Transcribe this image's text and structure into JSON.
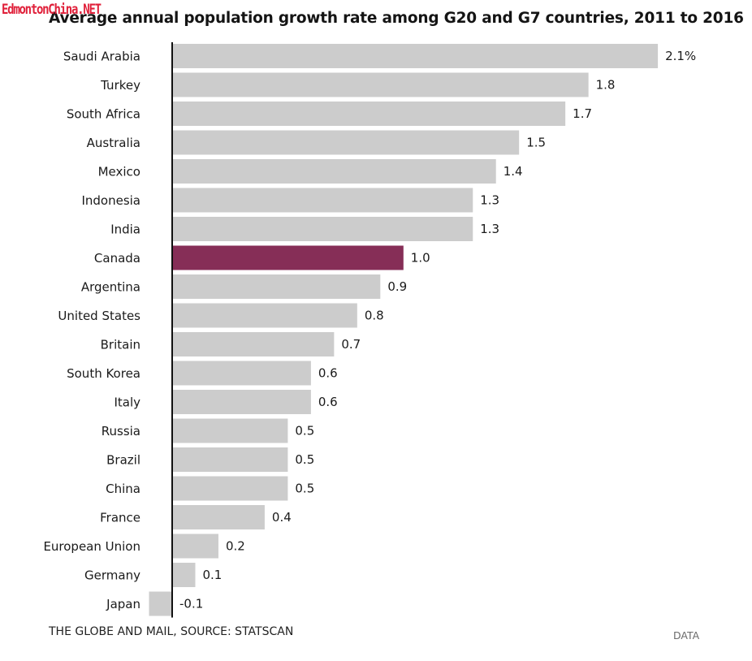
{
  "watermark": "EdmontonChina.NET",
  "chart_data": {
    "type": "bar",
    "orientation": "horizontal",
    "title": "Average annual population growth rate among G20 and G7 countries, 2011 to 2016",
    "xlabel": "",
    "ylabel": "",
    "unit": "%",
    "xlim": [
      -0.1,
      2.1
    ],
    "grid": false,
    "categories": [
      "Saudi Arabia",
      "Turkey",
      "South Africa",
      "Australia",
      "Mexico",
      "Indonesia",
      "India",
      "Canada",
      "Argentina",
      "United States",
      "Britain",
      "South Korea",
      "Italy",
      "Russia",
      "Brazil",
      "China",
      "France",
      "European Union",
      "Germany",
      "Japan"
    ],
    "values": [
      2.1,
      1.8,
      1.7,
      1.5,
      1.4,
      1.3,
      1.3,
      1.0,
      0.9,
      0.8,
      0.7,
      0.6,
      0.6,
      0.5,
      0.5,
      0.5,
      0.4,
      0.2,
      0.1,
      -0.1
    ],
    "value_labels": [
      "2.1%",
      "1.8",
      "1.7",
      "1.5",
      "1.4",
      "1.3",
      "1.3",
      "1.0",
      "0.9",
      "0.8",
      "0.7",
      "0.6",
      "0.6",
      "0.5",
      "0.5",
      "0.5",
      "0.4",
      "0.2",
      "0.1",
      "-0.1"
    ],
    "highlight": "Canada",
    "colors": {
      "default": "#cccccc",
      "highlight": "#862e57",
      "axis": "#111111"
    }
  },
  "footer": {
    "source": "THE GLOBE AND MAIL, SOURCE: STATSCAN",
    "data_link": "DATA"
  }
}
